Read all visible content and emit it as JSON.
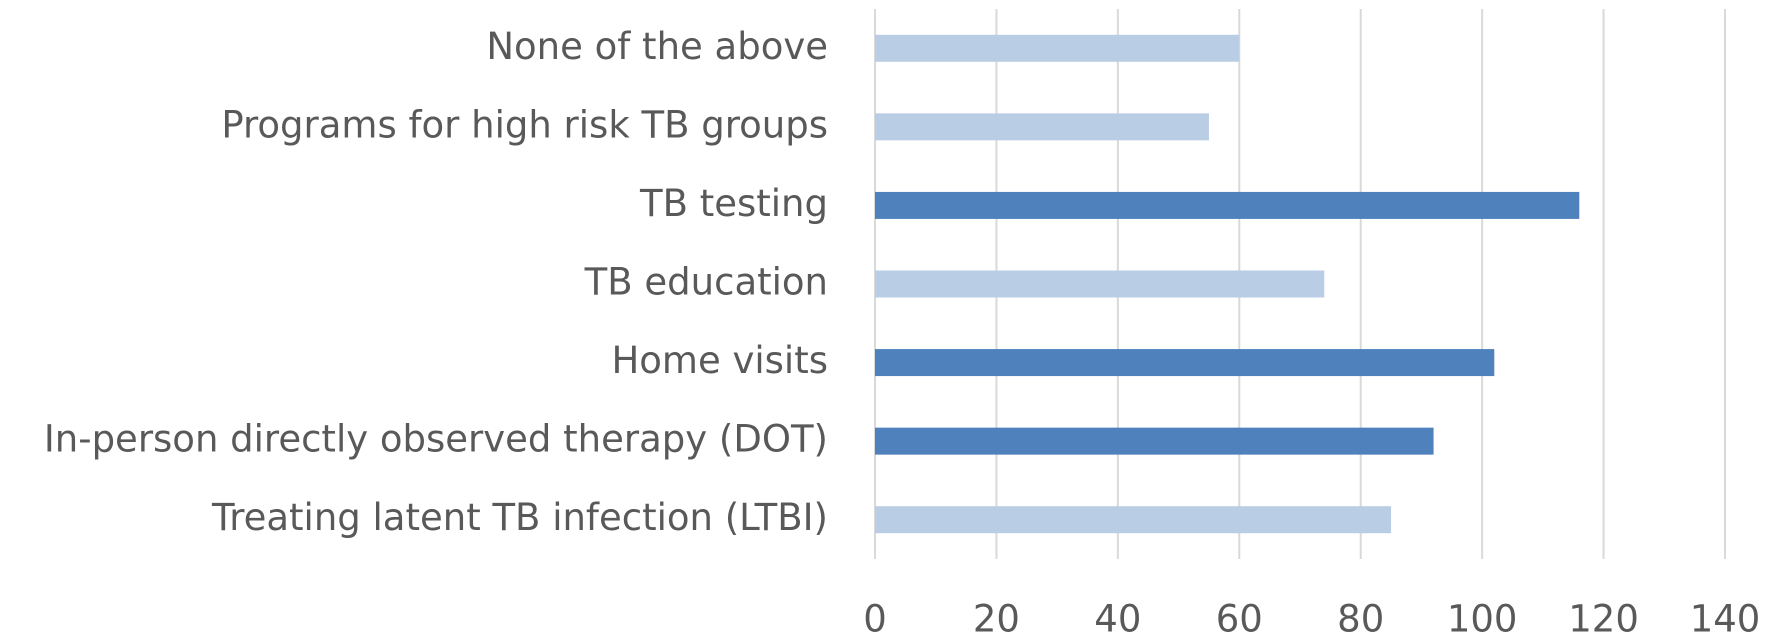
{
  "chart_data": {
    "type": "hbar",
    "categories": [
      "None of the above",
      "Programs for high risk TB groups",
      "TB testing",
      "TB education",
      "Home visits",
      "In-person directly observed therapy (DOT)",
      "Treating latent TB infection (LTBI)"
    ],
    "values": [
      60,
      55,
      116,
      74,
      102,
      92,
      85
    ],
    "colors": [
      "#b9cde5",
      "#b9cde5",
      "#4f81bd",
      "#b9cde5",
      "#4f81bd",
      "#4f81bd",
      "#b9cde5"
    ],
    "xlim": [
      0,
      140
    ],
    "xticks": [
      0,
      20,
      40,
      60,
      80,
      100,
      120,
      140
    ],
    "grid": true
  }
}
